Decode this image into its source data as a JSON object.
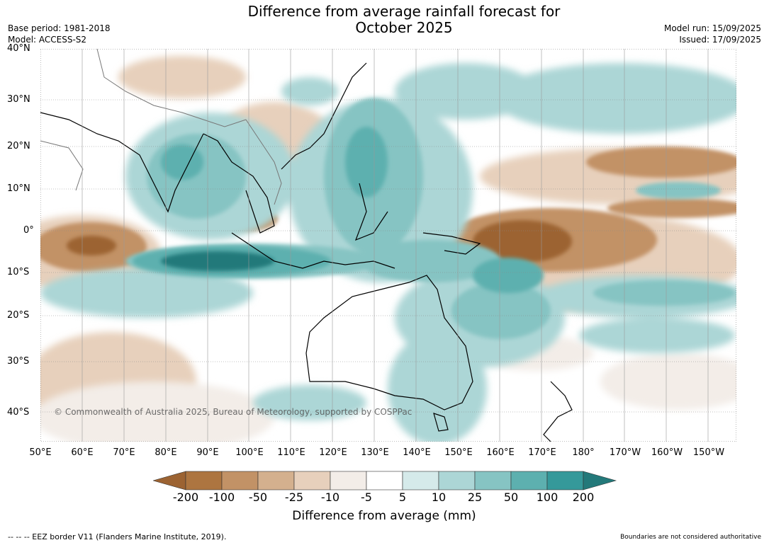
{
  "title_line1": "Difference from average rainfall forecast for",
  "title_line2": "October 2025",
  "base_period": "Base period: 1981-2018",
  "model": "Model: ACCESS-S2",
  "model_run": "Model run: 15/09/2025",
  "issued": "Issued: 17/09/2025",
  "lat_ticks": [
    "40°N",
    "30°N",
    "20°N",
    "10°N",
    "0°",
    "10°S",
    "20°S",
    "30°S",
    "40°S"
  ],
  "lon_ticks": [
    "50°E",
    "60°E",
    "70°E",
    "80°E",
    "90°E",
    "100°E",
    "110°E",
    "120°E",
    "130°E",
    "140°E",
    "150°E",
    "160°E",
    "170°E",
    "180°",
    "170°W",
    "160°W",
    "150°W"
  ],
  "copyright": "© Commonwealth of Australia 2025, Bureau of Meteorology, supported by COSPPac",
  "colorbar": {
    "labels": [
      "-200",
      "-100",
      "-50",
      "-25",
      "-10",
      "-5",
      "5",
      "10",
      "25",
      "50",
      "100",
      "200"
    ],
    "colors": [
      "#9c6332",
      "#ad7540",
      "#c29266",
      "#d4b08e",
      "#e7d0bc",
      "#f3ede8",
      "#ffffff",
      "#d5eaea",
      "#acd6d6",
      "#86c4c3",
      "#5db0af",
      "#35999a",
      "#23797a"
    ],
    "title": "Difference from average (mm)"
  },
  "footer_left": "--  --  -- EEZ border V11 (Flanders Marine Institute, 2019).",
  "footer_right": "Boundaries are not considered authoritative"
}
